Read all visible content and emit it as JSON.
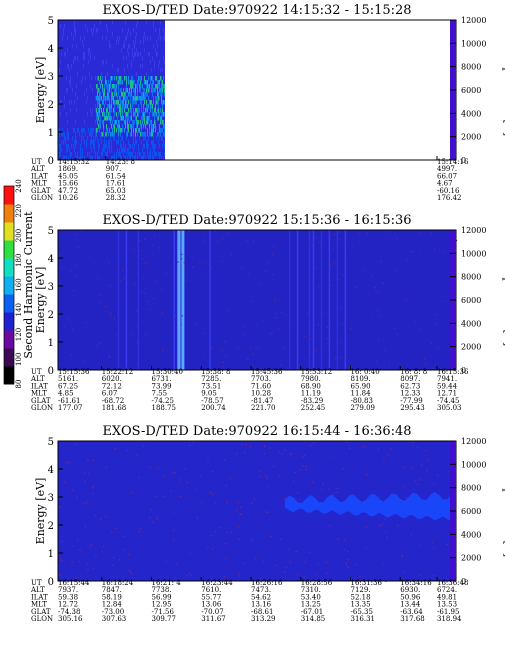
{
  "chart_data": {
    "type": "heatmap",
    "colorbar": {
      "label": "Second Harmonic Current",
      "ticks": [
        "80",
        "100",
        "120",
        "140",
        "160",
        "180",
        "200",
        "220",
        "240"
      ],
      "stops": [
        "#000000",
        "#3a0a55",
        "#6a0aa0",
        "#2020d0",
        "#0a60f0",
        "#10b0f0",
        "#10e0c0",
        "#30e040",
        "#e0e020",
        "#f08010",
        "#ff1010"
      ]
    },
    "panels": [
      {
        "title": "EXOS-D/TED   Date:970922   14:15:32 - 15:15:28",
        "ylabel": "Energy [eV]",
        "y2label": "Temperature [K]",
        "ylim": [
          0,
          5
        ],
        "y2lim": [
          0,
          12000
        ],
        "yticks": [
          "0",
          "1",
          "2",
          "3",
          "4",
          "5"
        ],
        "y2ticks": [
          "0",
          "2000",
          "4000",
          "6000",
          "8000",
          "10000",
          "12000"
        ],
        "data_extent_fraction": 0.27,
        "rows": [
          "UT",
          "ALT",
          "ILAT",
          "MLT",
          "GLAT",
          "GLON"
        ],
        "columns": [
          {
            "UT": "14:15:32",
            "ALT": "1869.",
            "ILAT": "45.05",
            "MLT": "15.66",
            "GLAT": "47.72",
            "GLON": "10.26"
          },
          {
            "UT": "14:23: 8",
            "ALT": "907.",
            "ILAT": "61.54",
            "MLT": "17.61",
            "GLAT": "65.03",
            "GLON": "28.32"
          },
          {
            "UT": "15:14:16",
            "ALT": "4997.",
            "ILAT": "66.07",
            "MLT": "4.67",
            "GLAT": "-60.16",
            "GLON": "176.42"
          }
        ]
      },
      {
        "title": "EXOS-D/TED   Date:970922   15:15:36 - 16:15:36",
        "ylabel": "Energy [eV]",
        "y2label": "Temperature [K]",
        "ylim": [
          0,
          5
        ],
        "y2lim": [
          0,
          12000
        ],
        "yticks": [
          "0",
          "1",
          "2",
          "3",
          "4",
          "5"
        ],
        "y2ticks": [
          "0",
          "2000",
          "4000",
          "6000",
          "8000",
          "10000",
          "12000"
        ],
        "rows": [
          "UT",
          "ALT",
          "ILAT",
          "MLT",
          "GLAT",
          "GLON"
        ],
        "columns": [
          {
            "UT": "15:15:36",
            "ALT": "5161.",
            "ILAT": "67.25",
            "MLT": "4.85",
            "GLAT": "-61.61",
            "GLON": "177.07"
          },
          {
            "UT": "15:22:12",
            "ALT": "6020.",
            "ILAT": "72.12",
            "MLT": "6.07",
            "GLAT": "-68.72",
            "GLON": "181.68"
          },
          {
            "UT": "15:30:40",
            "ALT": "6731.",
            "ILAT": "73.99",
            "MLT": "7.55",
            "GLAT": "-74.25",
            "GLON": "188.75"
          },
          {
            "UT": "15:38: 8",
            "ALT": "7285.",
            "ILAT": "73.51",
            "MLT": "9.05",
            "GLAT": "-78.57",
            "GLON": "200.74"
          },
          {
            "UT": "15:45:36",
            "ALT": "7703.",
            "ILAT": "71.60",
            "MLT": "10.28",
            "GLAT": "-81.47",
            "GLON": "221.70"
          },
          {
            "UT": "15:53:12",
            "ALT": "7980.",
            "ILAT": "68.90",
            "MLT": "11.19",
            "GLAT": "-83.29",
            "GLON": "252.45"
          },
          {
            "UT": "16: 0:40",
            "ALT": "8109.",
            "ILAT": "65.90",
            "MLT": "11.84",
            "GLAT": "-80.83",
            "GLON": "279.09"
          },
          {
            "UT": "16: 8: 8",
            "ALT": "8097.",
            "ILAT": "62.73",
            "MLT": "12.33",
            "GLAT": "-77.99",
            "GLON": "295.43"
          },
          {
            "UT": "16:15:36",
            "ALT": "7941.",
            "ILAT": "59.44",
            "MLT": "12.71",
            "GLAT": "-74.45",
            "GLON": "305.03"
          }
        ]
      },
      {
        "title": "EXOS-D/TED   Date:970922   16:15:44 - 16:36:48",
        "ylabel": "Energy [eV]",
        "y2label": "Temperature [K]",
        "ylim": [
          0,
          5
        ],
        "y2lim": [
          0,
          12000
        ],
        "yticks": [
          "0",
          "1",
          "2",
          "3",
          "4",
          "5"
        ],
        "y2ticks": [
          "0",
          "2000",
          "4000",
          "6000",
          "8000",
          "10000",
          "12000"
        ],
        "rows": [
          "UT",
          "ALT",
          "ILAT",
          "MLT",
          "GLAT",
          "GLON"
        ],
        "columns": [
          {
            "UT": "16:15:44",
            "ALT": "7937.",
            "ILAT": "59.38",
            "MLT": "12.72",
            "GLAT": "-74.38",
            "GLON": "305.16"
          },
          {
            "UT": "16:18:24",
            "ALT": "7847.",
            "ILAT": "58.19",
            "MLT": "12.84",
            "GLAT": "-73.00",
            "GLON": "307.63"
          },
          {
            "UT": "16:21: 4",
            "ALT": "7738.",
            "ILAT": "56.99",
            "MLT": "12.95",
            "GLAT": "-71.56",
            "GLON": "309.77"
          },
          {
            "UT": "16:23:44",
            "ALT": "7610.",
            "ILAT": "55.77",
            "MLT": "13.06",
            "GLAT": "-70.07",
            "GLON": "311.67"
          },
          {
            "UT": "16:26:16",
            "ALT": "7473.",
            "ILAT": "54.62",
            "MLT": "13.16",
            "GLAT": "-68.61",
            "GLON": "313.29"
          },
          {
            "UT": "16:28:56",
            "ALT": "7310.",
            "ILAT": "53.40",
            "MLT": "13.25",
            "GLAT": "-67.01",
            "GLON": "314.85"
          },
          {
            "UT": "16:31:36",
            "ALT": "7129.",
            "ILAT": "52.18",
            "MLT": "13.35",
            "GLAT": "-65.35",
            "GLON": "316.31"
          },
          {
            "UT": "16:34:16",
            "ALT": "6930.",
            "ILAT": "50.96",
            "MLT": "13.44",
            "GLAT": "-63.64",
            "GLON": "317.68"
          },
          {
            "UT": "16:36:48",
            "ALT": "6724.",
            "ILAT": "49.81",
            "MLT": "13.53",
            "GLAT": "-61.95",
            "GLON": "318.94"
          }
        ]
      }
    ]
  }
}
